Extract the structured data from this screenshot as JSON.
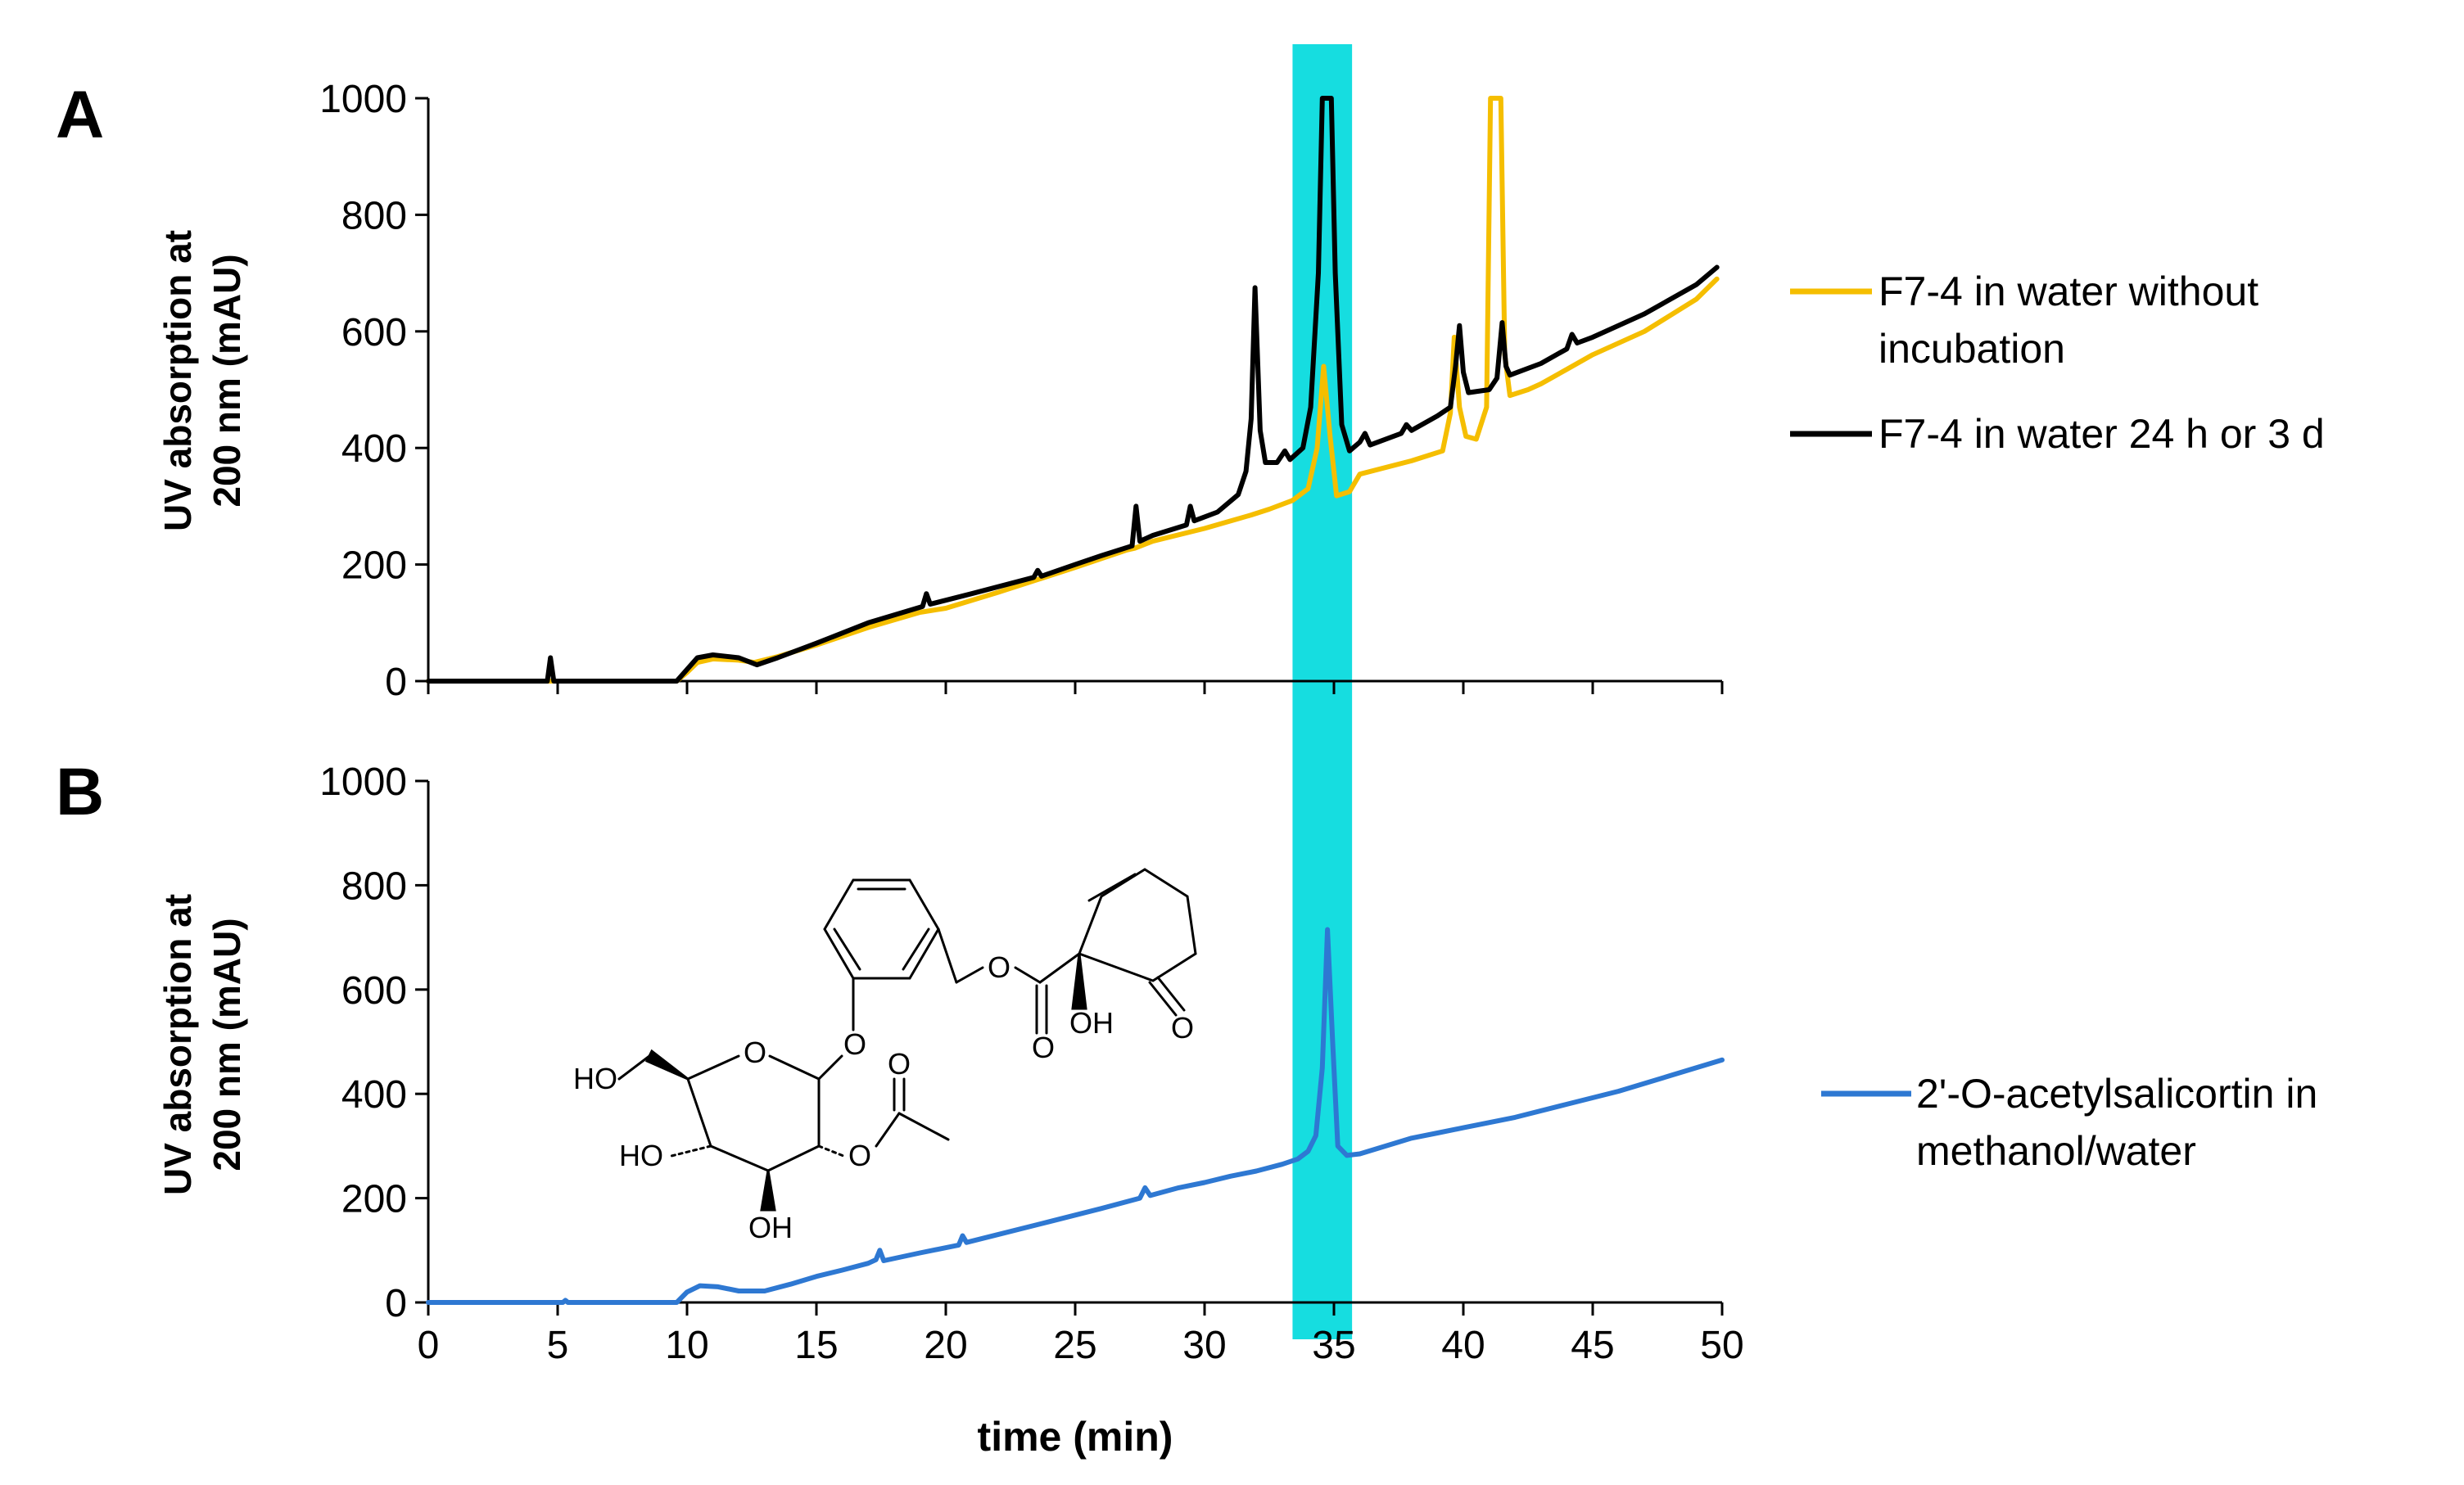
{
  "panels": {
    "a": {
      "label": "A"
    },
    "b": {
      "label": "B"
    }
  },
  "highlight_color": "#16dde0",
  "chart_data": [
    {
      "type": "line",
      "panel": "A",
      "ylabel": [
        "UV absorption at",
        "200 nm (mAU)"
      ],
      "xlabel": "",
      "xlim": [
        0,
        50
      ],
      "ylim": [
        0,
        1000
      ],
      "yticks": [
        0,
        200,
        400,
        600,
        800,
        1000
      ],
      "xticks": [
        0,
        5,
        10,
        15,
        20,
        25,
        30,
        35,
        40,
        45,
        50
      ],
      "grid": false,
      "legend_position": "right",
      "highlight_band": [
        33.4,
        35.7
      ],
      "series": [
        {
          "name": "F7-4 in water without incubation",
          "legend_lines": [
            "F7-4 in water without",
            "incubation"
          ],
          "color": "#f5be00",
          "points": [
            [
              0,
              0
            ],
            [
              9.6,
              0
            ],
            [
              10.0,
              15
            ],
            [
              10.4,
              32
            ],
            [
              11.0,
              38
            ],
            [
              12.0,
              36
            ],
            [
              12.6,
              32
            ],
            [
              13.5,
              42
            ],
            [
              15,
              62
            ],
            [
              17,
              92
            ],
            [
              19,
              118
            ],
            [
              20,
              125
            ],
            [
              22,
              152
            ],
            [
              25,
              195
            ],
            [
              27,
              225
            ],
            [
              27.3,
              228
            ],
            [
              28,
              240
            ],
            [
              30,
              262
            ],
            [
              31.8,
              285
            ],
            [
              32.5,
              295
            ],
            [
              33.4,
              310
            ],
            [
              34.0,
              330
            ],
            [
              34.35,
              400
            ],
            [
              34.6,
              540
            ],
            [
              34.85,
              420
            ],
            [
              35.1,
              318
            ],
            [
              35.6,
              325
            ],
            [
              36,
              355
            ],
            [
              38,
              378
            ],
            [
              39.2,
              395
            ],
            [
              39.5,
              460
            ],
            [
              39.65,
              590
            ],
            [
              39.85,
              470
            ],
            [
              40.1,
              420
            ],
            [
              40.5,
              415
            ],
            [
              40.9,
              470
            ],
            [
              41.05,
              1000
            ],
            [
              41.45,
              1000
            ],
            [
              41.6,
              560
            ],
            [
              41.8,
              490
            ],
            [
              42.5,
              500
            ],
            [
              43,
              510
            ],
            [
              44,
              535
            ],
            [
              45,
              560
            ],
            [
              47,
              600
            ],
            [
              49,
              655
            ],
            [
              49.8,
              690
            ]
          ]
        },
        {
          "name": "F7-4 in water 24 h or 3 d",
          "legend_lines": [
            "F7-4 in water 24 h or 3 d"
          ],
          "color": "#000000",
          "points": [
            [
              0,
              0
            ],
            [
              4.6,
              0
            ],
            [
              4.72,
              40
            ],
            [
              4.85,
              0
            ],
            [
              9.6,
              0
            ],
            [
              10.0,
              20
            ],
            [
              10.4,
              40
            ],
            [
              11.0,
              45
            ],
            [
              12.0,
              40
            ],
            [
              12.7,
              28
            ],
            [
              13.5,
              40
            ],
            [
              15,
              65
            ],
            [
              17,
              100
            ],
            [
              19.1,
              128
            ],
            [
              19.25,
              150
            ],
            [
              19.4,
              132
            ],
            [
              21,
              150
            ],
            [
              23.4,
              178
            ],
            [
              23.55,
              190
            ],
            [
              23.7,
              180
            ],
            [
              25,
              200
            ],
            [
              26,
              215
            ],
            [
              27.2,
              232
            ],
            [
              27.35,
              300
            ],
            [
              27.5,
              240
            ],
            [
              28,
              250
            ],
            [
              29.3,
              268
            ],
            [
              29.45,
              300
            ],
            [
              29.6,
              275
            ],
            [
              30.5,
              290
            ],
            [
              31.3,
              320
            ],
            [
              31.6,
              360
            ],
            [
              31.8,
              450
            ],
            [
              31.95,
              675
            ],
            [
              32.15,
              430
            ],
            [
              32.35,
              375
            ],
            [
              32.8,
              375
            ],
            [
              33.1,
              395
            ],
            [
              33.3,
              380
            ],
            [
              33.8,
              400
            ],
            [
              34.1,
              470
            ],
            [
              34.4,
              700
            ],
            [
              34.55,
              1000
            ],
            [
              34.9,
              1000
            ],
            [
              35.05,
              700
            ],
            [
              35.3,
              440
            ],
            [
              35.6,
              395
            ],
            [
              36,
              410
            ],
            [
              36.2,
              425
            ],
            [
              36.4,
              405
            ],
            [
              37.6,
              425
            ],
            [
              37.8,
              440
            ],
            [
              38.0,
              430
            ],
            [
              39,
              455
            ],
            [
              39.5,
              470
            ],
            [
              39.7,
              540
            ],
            [
              39.85,
              610
            ],
            [
              40.0,
              530
            ],
            [
              40.2,
              495
            ],
            [
              41,
              500
            ],
            [
              41.3,
              520
            ],
            [
              41.5,
              615
            ],
            [
              41.65,
              540
            ],
            [
              41.8,
              525
            ],
            [
              43,
              545
            ],
            [
              44,
              570
            ],
            [
              44.2,
              595
            ],
            [
              44.4,
              580
            ],
            [
              45,
              590
            ],
            [
              47,
              630
            ],
            [
              49,
              680
            ],
            [
              49.8,
              710
            ]
          ]
        }
      ]
    },
    {
      "type": "line",
      "panel": "B",
      "ylabel": [
        "UV absorption at",
        "200 nm (mAU)"
      ],
      "xlabel": "time (min)",
      "xlim": [
        0,
        50
      ],
      "ylim": [
        0,
        1000
      ],
      "yticks": [
        0,
        200,
        400,
        600,
        800,
        1000
      ],
      "xticks": [
        0,
        5,
        10,
        15,
        20,
        25,
        30,
        35,
        40,
        45,
        50
      ],
      "grid": false,
      "legend_position": "right",
      "highlight_band": [
        33.4,
        35.7
      ],
      "series": [
        {
          "name": "2'-O-acetylsalicortin in methanol/water",
          "legend_lines": [
            "2'-O-acetylsalicortin in",
            "methanol/water"
          ],
          "color": "#2e78d2",
          "points": [
            [
              0,
              0
            ],
            [
              5.2,
              0
            ],
            [
              5.3,
              4
            ],
            [
              5.4,
              0
            ],
            [
              9.6,
              0
            ],
            [
              10.0,
              20
            ],
            [
              10.5,
              32
            ],
            [
              11.2,
              30
            ],
            [
              12,
              22
            ],
            [
              13,
              22
            ],
            [
              14,
              35
            ],
            [
              15,
              50
            ],
            [
              16,
              62
            ],
            [
              17,
              75
            ],
            [
              17.3,
              82
            ],
            [
              17.45,
              100
            ],
            [
              17.6,
              80
            ],
            [
              19,
              95
            ],
            [
              20.5,
              110
            ],
            [
              20.65,
              128
            ],
            [
              20.8,
              115
            ],
            [
              22,
              130
            ],
            [
              24,
              155
            ],
            [
              26,
              180
            ],
            [
              27.5,
              200
            ],
            [
              27.7,
              220
            ],
            [
              27.9,
              205
            ],
            [
              29,
              220
            ],
            [
              30,
              230
            ],
            [
              31,
              242
            ],
            [
              32,
              252
            ],
            [
              33,
              265
            ],
            [
              33.6,
              275
            ],
            [
              34.0,
              290
            ],
            [
              34.3,
              320
            ],
            [
              34.55,
              450
            ],
            [
              34.75,
              715
            ],
            [
              34.95,
              500
            ],
            [
              35.15,
              300
            ],
            [
              35.5,
              282
            ],
            [
              36,
              285
            ],
            [
              37,
              300
            ],
            [
              38,
              315
            ],
            [
              39,
              325
            ],
            [
              40,
              335
            ],
            [
              42,
              355
            ],
            [
              44,
              380
            ],
            [
              46,
              405
            ],
            [
              48,
              435
            ],
            [
              50,
              465
            ]
          ]
        }
      ]
    }
  ],
  "structure_labels": {
    "ho_left": "HO",
    "ho_lower": "HO",
    "oh_bottom": "OH",
    "oh_top": "OH",
    "o_ring": "O",
    "o_glycosidic": "O",
    "o_ester_link": "O",
    "o_ester_carbonyl": "O",
    "o_ketone": "O",
    "o_acetyl_link": "O",
    "o_acetyl_carbonyl": "O"
  }
}
